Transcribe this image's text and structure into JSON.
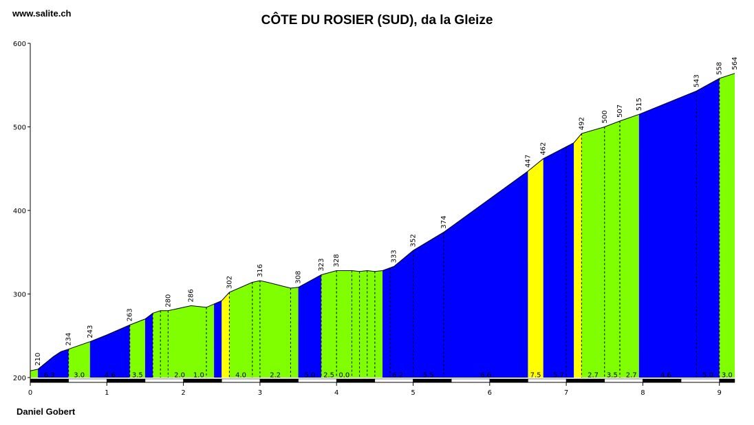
{
  "site": "www.salite.ch",
  "title": "CÔTE DU ROSIER (SUD), da la Gleize",
  "author": "Daniel Gobert",
  "colors": {
    "blue": "#0000ff",
    "green": "#80ff00",
    "yellow": "#ffff00"
  },
  "chart_data": {
    "type": "area",
    "title": "CÔTE DU ROSIER (SUD), da la Gleize",
    "xlim": [
      0,
      9.2
    ],
    "ylim": [
      200,
      600
    ],
    "x_ticks": [
      0,
      1,
      2,
      3,
      4,
      5,
      6,
      7,
      8,
      9
    ],
    "y_ticks": [
      200,
      300,
      400,
      500,
      600
    ],
    "profile": [
      [
        0,
        208
      ],
      [
        0.1,
        210
      ],
      [
        0.3,
        225
      ],
      [
        0.4,
        231
      ],
      [
        0.5,
        234
      ],
      [
        0.78,
        243
      ],
      [
        1.0,
        251
      ],
      [
        1.3,
        263
      ],
      [
        1.5,
        270
      ],
      [
        1.6,
        277
      ],
      [
        1.7,
        280
      ],
      [
        1.8,
        280
      ],
      [
        2.1,
        286
      ],
      [
        2.3,
        284
      ],
      [
        2.4,
        288
      ],
      [
        2.5,
        292
      ],
      [
        2.6,
        302
      ],
      [
        2.9,
        314
      ],
      [
        3.0,
        316
      ],
      [
        3.1,
        314
      ],
      [
        3.4,
        307
      ],
      [
        3.5,
        308
      ],
      [
        3.8,
        323
      ],
      [
        4.0,
        328
      ],
      [
        4.2,
        328
      ],
      [
        4.3,
        327
      ],
      [
        4.4,
        328
      ],
      [
        4.5,
        327
      ],
      [
        4.6,
        328
      ],
      [
        4.75,
        333
      ],
      [
        5.0,
        352
      ],
      [
        5.4,
        374
      ],
      [
        6.5,
        447
      ],
      [
        6.7,
        462
      ],
      [
        7.1,
        481
      ],
      [
        7.2,
        492
      ],
      [
        7.5,
        500
      ],
      [
        7.7,
        507
      ],
      [
        7.95,
        515
      ],
      [
        8.7,
        543
      ],
      [
        9.0,
        558
      ],
      [
        9.2,
        564
      ]
    ],
    "segments": [
      {
        "x0": 0,
        "x1": 0.1,
        "color": "green",
        "grade": ""
      },
      {
        "x0": 0.1,
        "x1": 0.5,
        "color": "blue",
        "grade": "6.3"
      },
      {
        "x0": 0.5,
        "x1": 0.78,
        "color": "green",
        "grade": "3.0"
      },
      {
        "x0": 0.78,
        "x1": 1.3,
        "color": "blue",
        "grade": "4.6"
      },
      {
        "x0": 1.3,
        "x1": 1.5,
        "color": "green",
        "grade": "3.5"
      },
      {
        "x0": 1.5,
        "x1": 1.6,
        "color": "blue",
        "grade": ""
      },
      {
        "x0": 1.6,
        "x1": 2.4,
        "color": "green",
        "grade": "2.0"
      },
      {
        "x0": 2.4,
        "x1": 2.5,
        "color": "blue",
        "grade": ""
      },
      {
        "x0": 2.5,
        "x1": 2.6,
        "color": "yellow",
        "grade": ""
      },
      {
        "x0": 2.6,
        "x1": 3.5,
        "color": "green",
        "grade": "4.0"
      },
      {
        "x0": 3.5,
        "x1": 3.8,
        "color": "blue",
        "grade": "5.0"
      },
      {
        "x0": 3.8,
        "x1": 4.6,
        "color": "green",
        "grade": "2.5"
      },
      {
        "x0": 4.6,
        "x1": 6.5,
        "color": "blue",
        "grade": "6.2"
      },
      {
        "x0": 6.5,
        "x1": 6.7,
        "color": "yellow",
        "grade": "7.5"
      },
      {
        "x0": 6.7,
        "x1": 7.1,
        "color": "blue",
        "grade": "5.7"
      },
      {
        "x0": 7.1,
        "x1": 7.2,
        "color": "yellow",
        "grade": ""
      },
      {
        "x0": 7.2,
        "x1": 7.95,
        "color": "green",
        "grade": "2.7"
      },
      {
        "x0": 7.95,
        "x1": 9.0,
        "color": "blue",
        "grade": "4.6"
      },
      {
        "x0": 9.0,
        "x1": 9.2,
        "color": "green",
        "grade": "3.0"
      }
    ],
    "grade_labels": [
      {
        "x": 0.25,
        "text": "6.3"
      },
      {
        "x": 0.64,
        "text": "3.0"
      },
      {
        "x": 1.04,
        "text": "4.6"
      },
      {
        "x": 1.4,
        "text": "3.5"
      },
      {
        "x": 1.95,
        "text": "2.0"
      },
      {
        "x": 2.2,
        "text": "1.0"
      },
      {
        "x": 2.75,
        "text": "4.0"
      },
      {
        "x": 3.2,
        "text": "2.2"
      },
      {
        "x": 3.65,
        "text": "5.0"
      },
      {
        "x": 3.9,
        "text": "2.5"
      },
      {
        "x": 4.1,
        "text": "0.0"
      },
      {
        "x": 4.8,
        "text": "6.2"
      },
      {
        "x": 5.2,
        "text": "5.5"
      },
      {
        "x": 5.95,
        "text": "6.6"
      },
      {
        "x": 6.6,
        "text": "7.5"
      },
      {
        "x": 6.9,
        "text": "5.7"
      },
      {
        "x": 7.35,
        "text": "2.7"
      },
      {
        "x": 7.6,
        "text": "3.5"
      },
      {
        "x": 7.85,
        "text": "2.7"
      },
      {
        "x": 8.3,
        "text": "4.6"
      },
      {
        "x": 8.85,
        "text": "5.0"
      },
      {
        "x": 9.1,
        "text": "3.0"
      }
    ],
    "elevation_labels": [
      {
        "x": 0.1,
        "y": 210
      },
      {
        "x": 0.5,
        "y": 234
      },
      {
        "x": 0.78,
        "y": 243
      },
      {
        "x": 1.3,
        "y": 263
      },
      {
        "x": 1.8,
        "y": 280
      },
      {
        "x": 2.1,
        "y": 286
      },
      {
        "x": 2.6,
        "y": 302
      },
      {
        "x": 3.0,
        "y": 316
      },
      {
        "x": 3.5,
        "y": 308
      },
      {
        "x": 3.8,
        "y": 323
      },
      {
        "x": 4.0,
        "y": 328
      },
      {
        "x": 4.75,
        "y": 333
      },
      {
        "x": 5.0,
        "y": 352
      },
      {
        "x": 5.4,
        "y": 374
      },
      {
        "x": 6.5,
        "y": 447
      },
      {
        "x": 6.7,
        "y": 462
      },
      {
        "x": 7.2,
        "y": 492
      },
      {
        "x": 7.5,
        "y": 500
      },
      {
        "x": 7.7,
        "y": 507
      },
      {
        "x": 7.95,
        "y": 515
      },
      {
        "x": 8.7,
        "y": 543
      },
      {
        "x": 9.0,
        "y": 558
      },
      {
        "x": 9.2,
        "y": 564
      }
    ],
    "dashed_x": [
      0.5,
      1.3,
      1.6,
      1.7,
      1.8,
      2.3,
      2.6,
      2.9,
      3.0,
      3.4,
      3.8,
      4.0,
      4.2,
      4.3,
      4.4,
      4.5,
      4.7,
      5.0,
      5.4,
      7.0,
      7.2,
      7.5,
      7.7,
      8.7,
      9.0
    ]
  }
}
